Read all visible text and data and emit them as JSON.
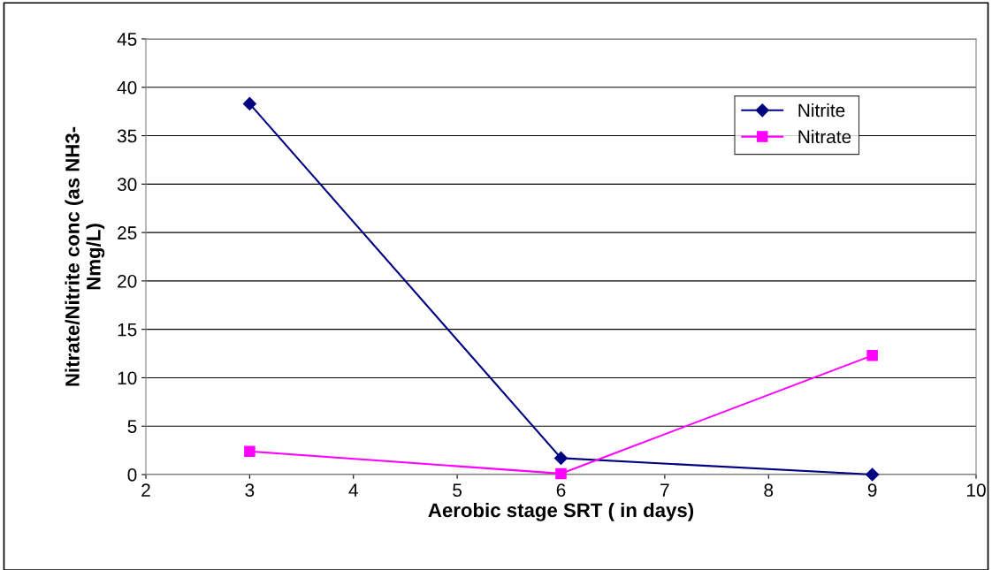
{
  "chart_data": {
    "type": "line",
    "xlabel": "Aerobic stage SRT ( in days)",
    "ylabel": "Nitrate/Nitrite conc (as NH3-\nNmg/L)",
    "x": [
      3,
      6,
      9
    ],
    "series": [
      {
        "name": "Nitrite",
        "color": "#000080",
        "marker": "diamond",
        "values": [
          38.3,
          1.7,
          0
        ]
      },
      {
        "name": "Nitrate",
        "color": "#ff00ff",
        "marker": "square",
        "values": [
          2.4,
          0.1,
          12.3
        ]
      }
    ],
    "xlim": [
      2,
      10
    ],
    "xticks": [
      2,
      3,
      4,
      5,
      6,
      7,
      8,
      9,
      10
    ],
    "ylim": [
      0,
      45
    ],
    "yticks": [
      0,
      5,
      10,
      15,
      20,
      25,
      30,
      35,
      40,
      45
    ],
    "grid": "y",
    "legend": "top right",
    "line_style": "solid"
  }
}
